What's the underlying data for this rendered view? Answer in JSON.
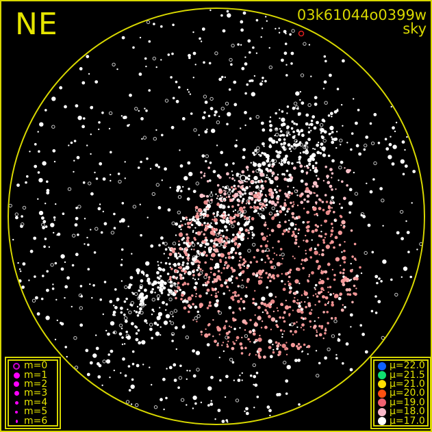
{
  "direction_label": "NE",
  "image_id": "03k61044o0399w",
  "image_type": "sky",
  "colors": {
    "horizon": "#d8d800",
    "text": "#e6e600",
    "star": "#ffffff",
    "bright_region": "#f4a0a0"
  },
  "magnitude_legend": [
    {
      "label": "m=0",
      "symbol": "open-circle",
      "color": "#cc00cc"
    },
    {
      "label": "m=1",
      "symbol": "filled-circle",
      "color": "#ff00ff"
    },
    {
      "label": "m=2",
      "symbol": "filled-circle",
      "color": "#ff00ff"
    },
    {
      "label": "m=3",
      "symbol": "filled-circle",
      "color": "#ff00ff"
    },
    {
      "label": "m=4",
      "symbol": "filled-circle",
      "color": "#ff00ff"
    },
    {
      "label": "m=5",
      "symbol": "filled-circle",
      "color": "#ff00ff"
    },
    {
      "label": "m=6",
      "symbol": "filled-circle",
      "color": "#ff00ff"
    }
  ],
  "brightness_legend": [
    {
      "label": "μ=22.0",
      "color": "#1060ff"
    },
    {
      "label": "μ=21.5",
      "color": "#10e070"
    },
    {
      "label": "μ=21.0",
      "color": "#ffe000"
    },
    {
      "label": "μ=20.0",
      "color": "#ff5010"
    },
    {
      "label": "μ=19.0",
      "color": "#f06070"
    },
    {
      "label": "μ=18.0",
      "color": "#f8b8c8"
    },
    {
      "label": "μ=17.0",
      "color": "#ffffff"
    }
  ]
}
